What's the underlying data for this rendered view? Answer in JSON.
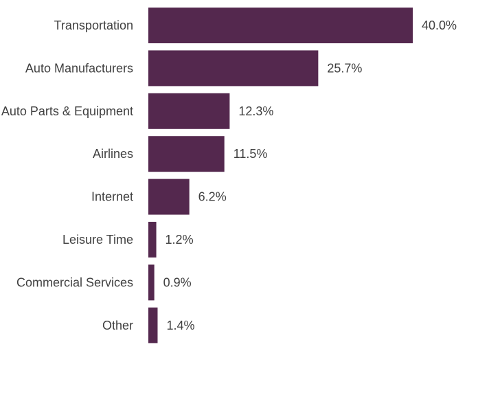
{
  "chart_data": {
    "type": "bar",
    "orientation": "horizontal",
    "categories": [
      "Transportation",
      "Auto Manufacturers",
      "Auto Parts & Equipment",
      "Airlines",
      "Internet",
      "Leisure Time",
      "Commercial Services",
      "Other"
    ],
    "values": [
      40.0,
      25.7,
      12.3,
      11.5,
      6.2,
      1.2,
      0.9,
      1.4
    ],
    "value_labels": [
      "40.0%",
      "25.7%",
      "12.3%",
      "11.5%",
      "6.2%",
      "1.2%",
      "0.9%",
      "1.4%"
    ],
    "xlim": [
      0,
      40
    ],
    "grid": false,
    "legend": "none",
    "bar_color": "#54284e",
    "text_color": "#404040"
  }
}
